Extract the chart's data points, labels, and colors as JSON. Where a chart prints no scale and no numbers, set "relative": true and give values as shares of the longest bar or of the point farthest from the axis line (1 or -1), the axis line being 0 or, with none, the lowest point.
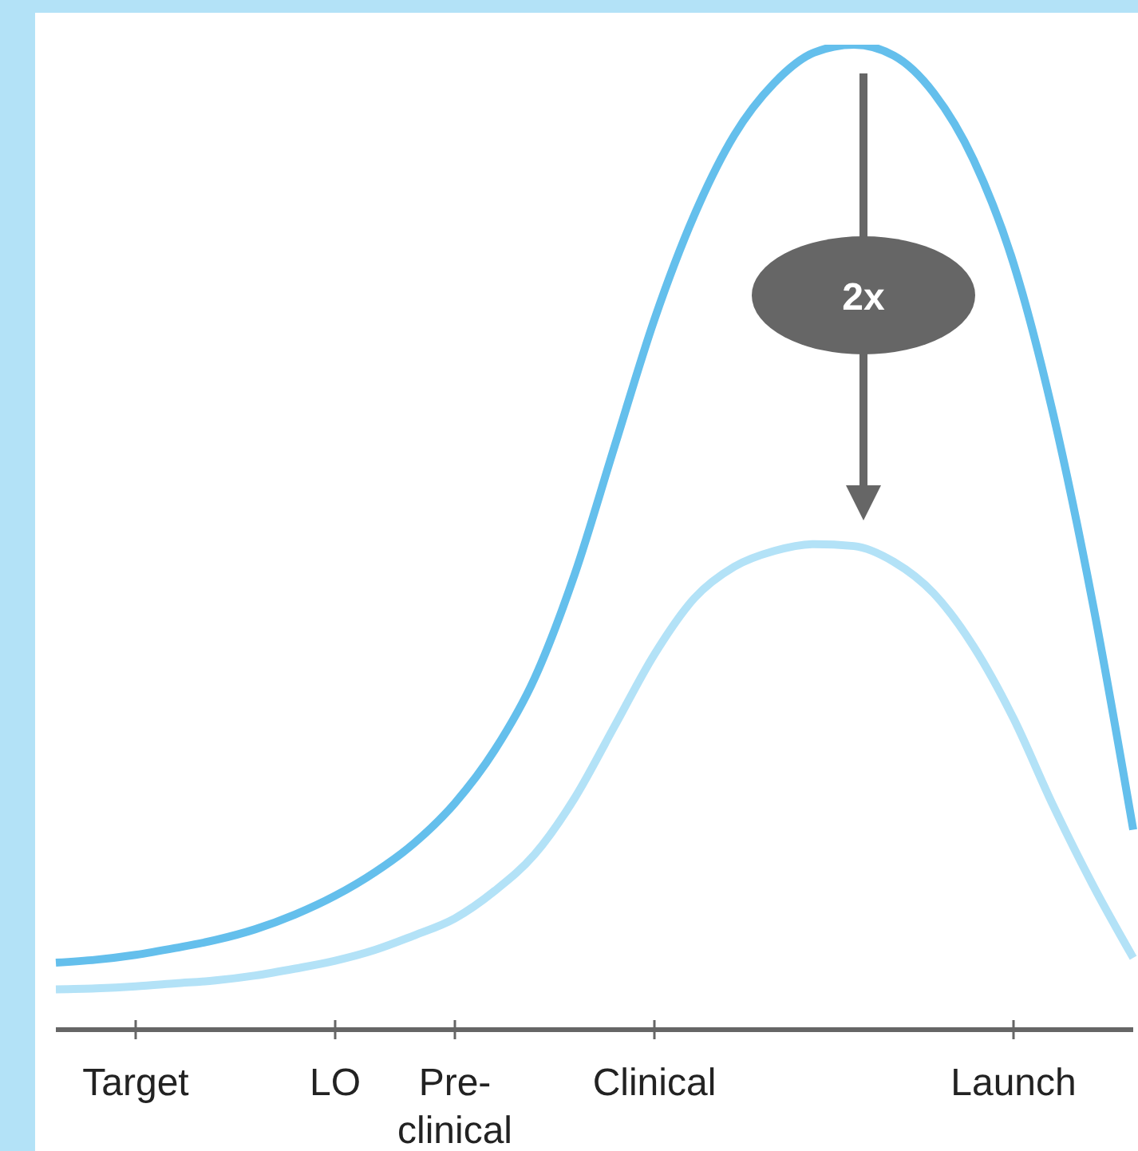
{
  "chart_data": {
    "type": "line",
    "relative": true,
    "categories": [
      null,
      null,
      "Target",
      null,
      null,
      null,
      null,
      "LO",
      null,
      null,
      "Pre-clinical",
      null,
      null,
      null,
      null,
      "Clinical",
      null,
      null,
      null,
      null,
      null,
      null,
      null,
      null,
      "Launch",
      null,
      null,
      null
    ],
    "series": [
      {
        "color": "#64bfec",
        "values": [
          0.068,
          0.071,
          0.076,
          0.083,
          0.091,
          0.102,
          0.117,
          0.136,
          0.16,
          0.19,
          0.23,
          0.284,
          0.357,
          0.462,
          0.592,
          0.721,
          0.827,
          0.908,
          0.961,
          0.992,
          1.0,
          0.989,
          0.951,
          0.883,
          0.778,
          0.624,
          0.43,
          0.203
        ]
      },
      {
        "color": "#b3e2f7",
        "values": [
          0.041,
          0.042,
          0.044,
          0.047,
          0.05,
          0.055,
          0.062,
          0.07,
          0.081,
          0.096,
          0.113,
          0.141,
          0.178,
          0.235,
          0.308,
          0.381,
          0.438,
          0.47,
          0.486,
          0.493,
          0.491,
          0.475,
          0.443,
          0.389,
          0.316,
          0.227,
          0.146,
          0.073
        ]
      }
    ],
    "annotations": [
      "2x"
    ],
    "grid": false,
    "legend": false,
    "marker": "none",
    "line_style": "solid"
  }
}
